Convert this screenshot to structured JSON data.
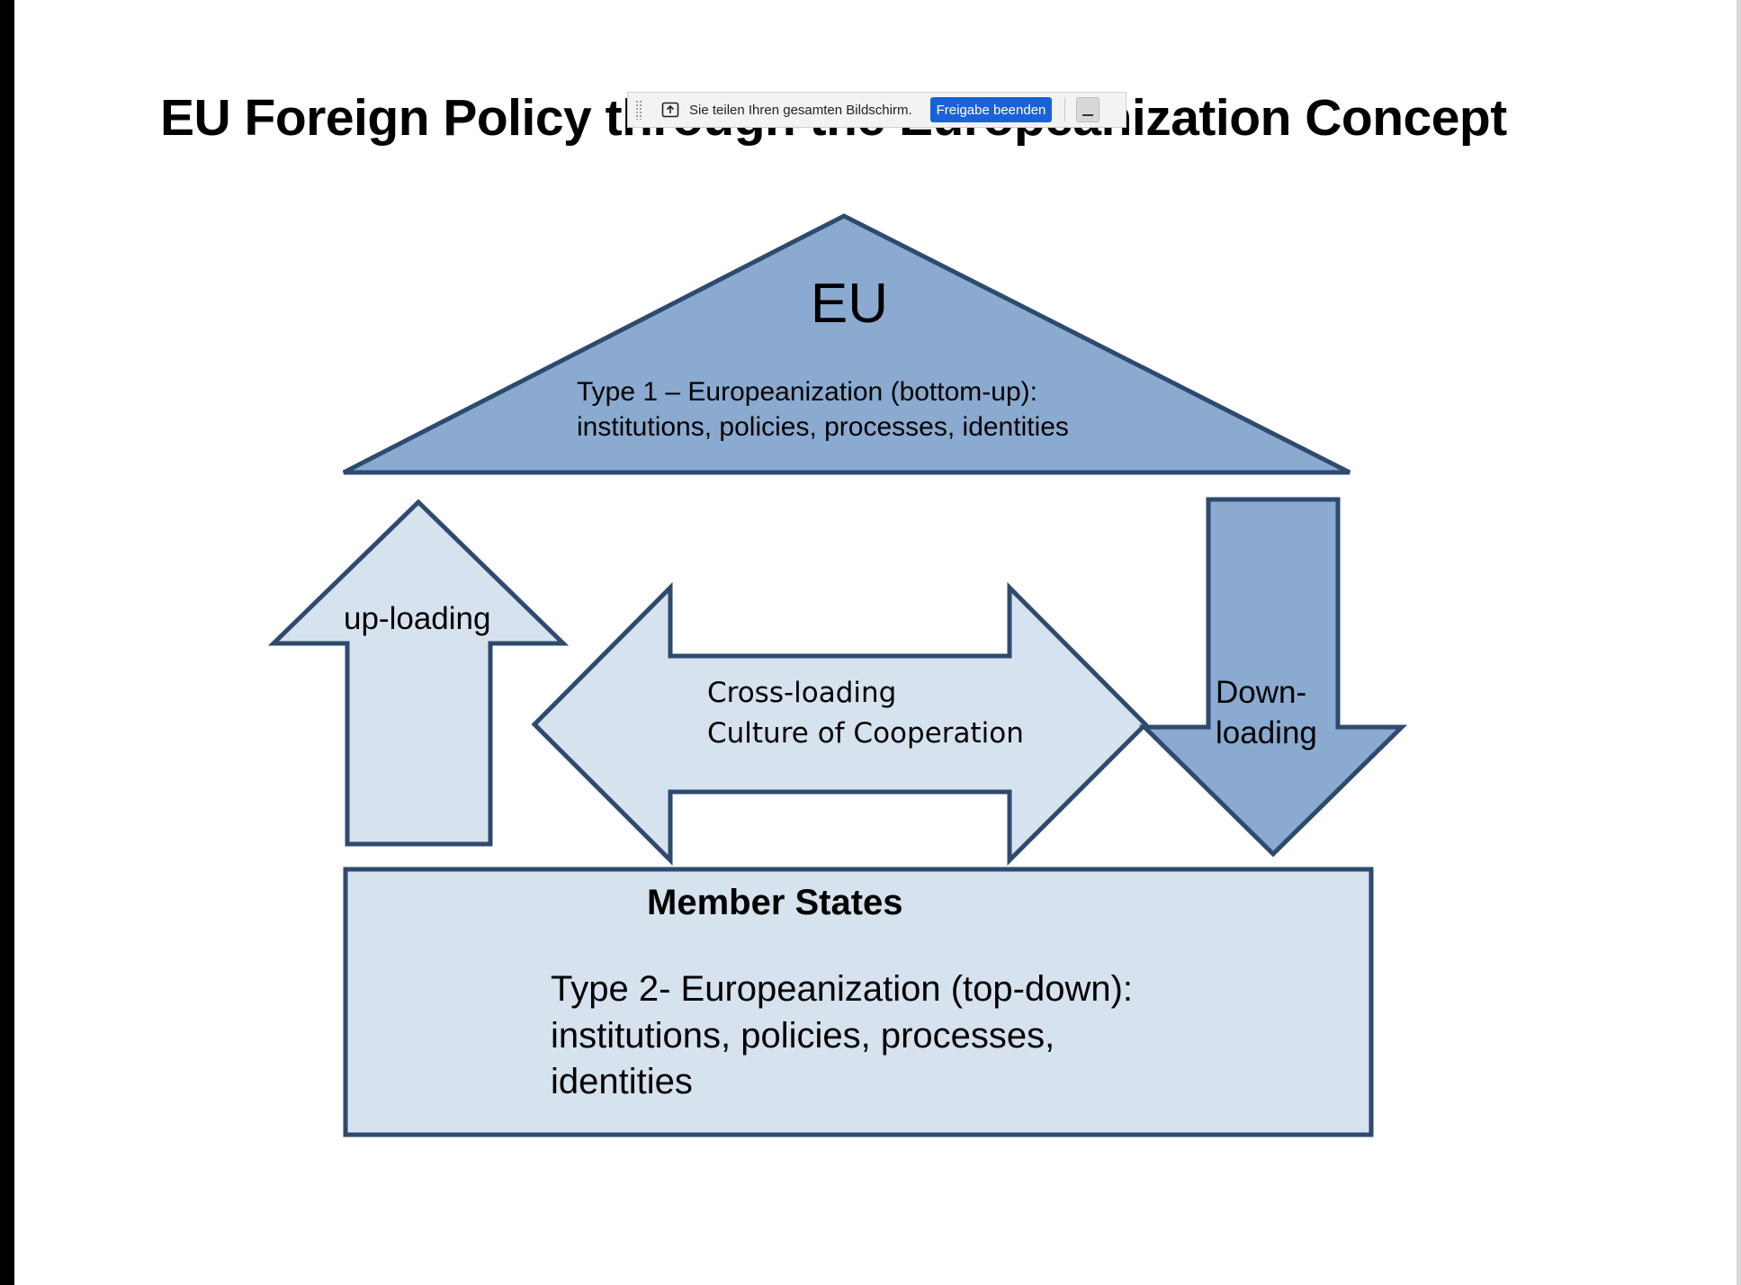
{
  "slide": {
    "title": "EU Foreign Policy through the Europeanization Concept"
  },
  "diagram": {
    "eu": {
      "label": "EU",
      "type_line": "Type 1 – Europeanization (bottom-up):",
      "items_line": "institutions, policies, processes, identities"
    },
    "uploading": {
      "label": "up-loading"
    },
    "crossloading": {
      "line1": "Cross-loading",
      "line2": "Culture of Cooperation"
    },
    "downloading": {
      "line1": "Down-",
      "line2": "loading"
    },
    "member_states": {
      "label": "Member States",
      "line1": "Type 2- Europeanization (top-down):",
      "line2": "institutions, policies, processes,",
      "line3": "identities"
    }
  },
  "share_bar": {
    "message": "Sie teilen Ihren gesamten Bildschirm.",
    "stop_label": "Freigabe beenden",
    "icon": "screen-share-icon",
    "minimize_icon": "minimize-icon"
  },
  "colors": {
    "dark_fill": "#8aaacf",
    "light_fill": "#d6e2ee",
    "stroke": "#2e4a6e"
  }
}
